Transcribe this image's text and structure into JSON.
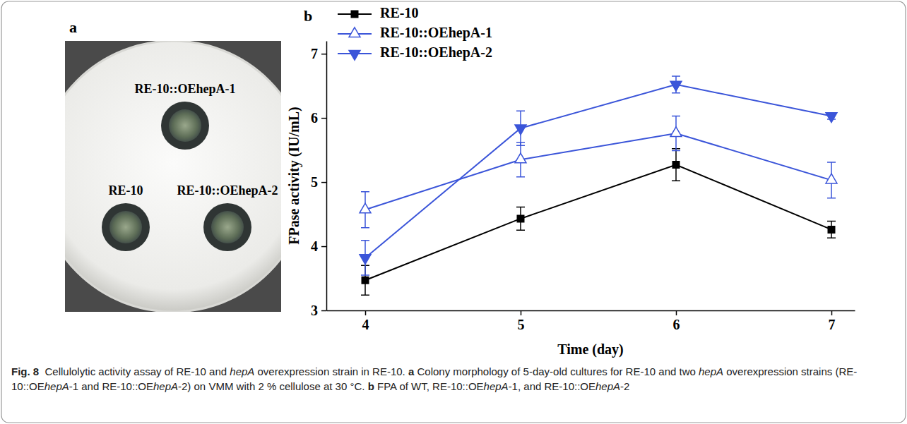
{
  "figure": {
    "panel_a": {
      "letter": "a",
      "colony_labels": [
        "RE-10::OEhepA-1",
        "RE-10",
        "RE-10::OEhepA-2"
      ]
    },
    "panel_b": {
      "letter": "b"
    },
    "caption": [
      {
        "text": "Fig. 8",
        "style": "bold"
      },
      {
        "text": "  Cellulolytic activity assay of RE-10 and ",
        "style": "normal"
      },
      {
        "text": "hepA",
        "style": "italic"
      },
      {
        "text": " overexpression strain in RE-10. ",
        "style": "normal"
      },
      {
        "text": "a",
        "style": "bold"
      },
      {
        "text": " Colony morphology of 5-day-old cultures for RE-10 and two ",
        "style": "normal"
      },
      {
        "text": "hepA",
        "style": "italic"
      },
      {
        "text": " overexpression strains (RE-10::OE",
        "style": "normal"
      },
      {
        "text": "hepA",
        "style": "italic"
      },
      {
        "text": "-1 and RE-10::OE",
        "style": "normal"
      },
      {
        "text": "hepA",
        "style": "italic"
      },
      {
        "text": "-2) on VMM with 2 % cellulose at 30 °C. ",
        "style": "normal"
      },
      {
        "text": "b",
        "style": "bold"
      },
      {
        "text": " FPA of WT, RE-10::OE",
        "style": "normal"
      },
      {
        "text": "hepA",
        "style": "italic"
      },
      {
        "text": "-1, and RE-10::OE",
        "style": "normal"
      },
      {
        "text": "hepA",
        "style": "italic"
      },
      {
        "text": "-2",
        "style": "normal"
      }
    ]
  },
  "chart_data": {
    "type": "line",
    "x_label": "Time (day)",
    "y_label": "FPase activity (IU/mL)",
    "x": [
      4,
      5,
      6,
      7
    ],
    "xlim": [
      3.75,
      7.15
    ],
    "xticks": [
      4,
      5,
      6,
      7
    ],
    "ylim": [
      3,
      7.2
    ],
    "yticks": [
      3,
      4,
      5,
      6,
      7
    ],
    "grid": false,
    "legend": "top-left",
    "series": [
      {
        "name": "RE-10",
        "color": "#000000",
        "marker": "square",
        "line_style": "solid",
        "values": [
          3.47,
          4.43,
          5.27,
          4.26
        ],
        "errors": [
          0.23,
          0.18,
          0.25,
          0.13
        ]
      },
      {
        "name": "RE-10::OEhepA-1",
        "color": "#3b55d9",
        "marker": "open-triangle",
        "line_style": "solid",
        "values": [
          4.57,
          5.35,
          5.76,
          5.03
        ],
        "errors": [
          0.28,
          0.27,
          0.27,
          0.28
        ]
      },
      {
        "name": "RE-10::OEhepA-2",
        "color": "#3b55d9",
        "marker": "triangle-down",
        "line_style": "solid",
        "values": [
          3.82,
          5.84,
          6.52,
          6.03
        ],
        "errors": [
          0.27,
          0.27,
          0.13,
          0.05
        ]
      }
    ]
  }
}
